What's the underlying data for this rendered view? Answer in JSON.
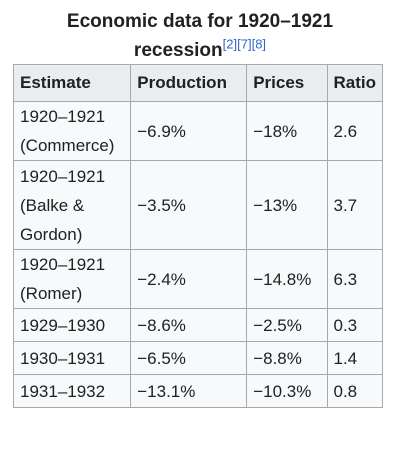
{
  "caption": {
    "line1": "Economic data for 1920–1921",
    "line2": "recession",
    "citations": [
      "[2]",
      "[7]",
      "[8]"
    ]
  },
  "table": {
    "headers": [
      "Estimate",
      "Production",
      "Prices",
      "Ratio"
    ],
    "rows": [
      {
        "estimate_line1": "1920–1921",
        "estimate_line2": "(Commerce)",
        "estimate_line3": "",
        "production": "−6.9%",
        "prices": "−18%",
        "ratio": "2.6"
      },
      {
        "estimate_line1": "1920–1921",
        "estimate_line2": "(Balke &",
        "estimate_line3": "Gordon)",
        "production": "−3.5%",
        "prices": "−13%",
        "ratio": "3.7"
      },
      {
        "estimate_line1": "1920–1921",
        "estimate_line2": "(Romer)",
        "estimate_line3": "",
        "production": "−2.4%",
        "prices": "−14.8%",
        "ratio": "6.3"
      },
      {
        "estimate_line1": "1929–1930",
        "estimate_line2": "",
        "estimate_line3": "",
        "production": "−8.6%",
        "prices": "−2.5%",
        "ratio": "0.3"
      },
      {
        "estimate_line1": "1930–1931",
        "estimate_line2": "",
        "estimate_line3": "",
        "production": "−6.5%",
        "prices": "−8.8%",
        "ratio": "1.4"
      },
      {
        "estimate_line1": "1931–1932",
        "estimate_line2": "",
        "estimate_line3": "",
        "production": "−13.1%",
        "prices": "−10.3%",
        "ratio": "0.8"
      }
    ]
  }
}
